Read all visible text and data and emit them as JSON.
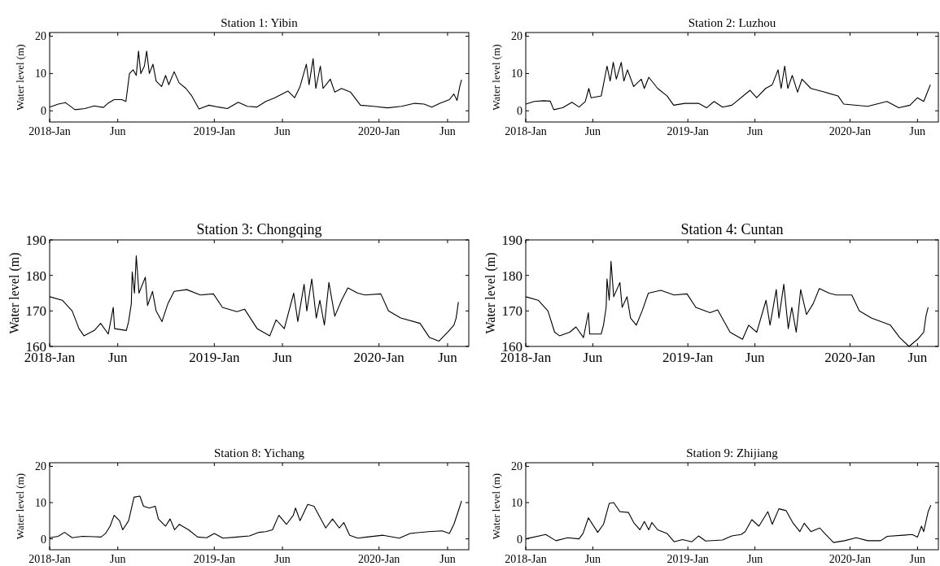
{
  "chart_data": [
    {
      "type": "line",
      "title": "Station 1: Yibin",
      "ylabel": "Water level (m)",
      "xlim": [
        "2018-01-01",
        "2020-07-18"
      ],
      "xticks": [
        {
          "value": "2018-01-01",
          "label": "2018-Jan"
        },
        {
          "value": "2018-06-01",
          "label": "Jun"
        },
        {
          "value": "2019-01-01",
          "label": "2019-Jan"
        },
        {
          "value": "2019-06-01",
          "label": "Jun"
        },
        {
          "value": "2020-01-01",
          "label": "2020-Jan"
        },
        {
          "value": "2020-06-01",
          "label": "Jun"
        }
      ],
      "ylim": [
        -3,
        21
      ],
      "yticks": [
        0,
        10,
        20
      ],
      "grid": false,
      "series": [
        {
          "color": "#000000",
          "x": [
            "2018-01-01",
            "2018-01-20",
            "2018-02-05",
            "2018-02-26",
            "2018-03-20",
            "2018-04-10",
            "2018-04-30",
            "2018-05-10",
            "2018-05-24",
            "2018-06-10",
            "2018-06-19",
            "2018-06-27",
            "2018-07-05",
            "2018-07-12",
            "2018-07-17",
            "2018-07-22",
            "2018-07-30",
            "2018-08-04",
            "2018-08-10",
            "2018-08-18",
            "2018-08-25",
            "2018-09-06",
            "2018-09-15",
            "2018-09-22",
            "2018-10-04",
            "2018-10-15",
            "2018-10-30",
            "2018-11-12",
            "2018-11-28",
            "2018-12-20",
            "2019-01-10",
            "2019-01-30",
            "2019-02-23",
            "2019-03-15",
            "2019-04-05",
            "2019-04-25",
            "2019-05-15",
            "2019-06-13",
            "2019-06-28",
            "2019-07-10",
            "2019-07-24",
            "2019-07-30",
            "2019-08-08",
            "2019-08-14",
            "2019-08-24",
            "2019-08-30",
            "2019-09-15",
            "2019-09-25",
            "2019-10-10",
            "2019-10-30",
            "2019-11-21",
            "2019-12-20",
            "2020-01-20",
            "2020-02-20",
            "2020-03-20",
            "2020-04-10",
            "2020-04-27",
            "2020-05-15",
            "2020-06-05",
            "2020-06-15",
            "2020-06-22",
            "2020-06-28",
            "2020-07-02"
          ],
          "values": [
            1.0,
            1.8,
            2.2,
            0.3,
            0.6,
            1.3,
            0.9,
            2.0,
            3.0,
            3.0,
            2.5,
            10,
            11,
            9.5,
            16,
            10,
            12,
            16,
            10,
            12.5,
            8,
            6.5,
            9.5,
            7,
            10.5,
            7.5,
            6,
            4,
            0.5,
            1.5,
            1.0,
            0.6,
            2.3,
            1.2,
            1.0,
            2.5,
            3.5,
            5.3,
            3.5,
            6.5,
            12.5,
            7,
            14,
            6,
            12,
            6,
            8.5,
            5,
            6,
            5,
            1.5,
            1.2,
            0.8,
            1.2,
            2.0,
            1.8,
            1.0,
            2.0,
            3.0,
            4.5,
            2.8,
            6.5,
            8.3
          ]
        }
      ]
    },
    {
      "type": "line",
      "title": "Station 2: Luzhou",
      "ylabel": "Water level (m)",
      "xlim": [
        "2018-01-01",
        "2020-07-18"
      ],
      "xticks": [
        {
          "value": "2018-01-01",
          "label": "2018-Jan"
        },
        {
          "value": "2018-06-01",
          "label": "Jun"
        },
        {
          "value": "2019-01-01",
          "label": "2019-Jan"
        },
        {
          "value": "2019-06-01",
          "label": "Jun"
        },
        {
          "value": "2020-01-01",
          "label": "2020-Jan"
        },
        {
          "value": "2020-06-01",
          "label": "Jun"
        }
      ],
      "ylim": [
        -3,
        21
      ],
      "yticks": [
        0,
        10,
        20
      ],
      "grid": false,
      "series": [
        {
          "color": "#000000",
          "x": [
            "2018-01-01",
            "2018-01-20",
            "2018-02-10",
            "2018-02-25",
            "2018-03-05",
            "2018-03-25",
            "2018-04-15",
            "2018-05-01",
            "2018-05-15",
            "2018-05-23",
            "2018-05-28",
            "2018-06-20",
            "2018-07-03",
            "2018-07-10",
            "2018-07-17",
            "2018-07-24",
            "2018-08-04",
            "2018-08-10",
            "2018-08-18",
            "2018-09-01",
            "2018-09-18",
            "2018-09-25",
            "2018-10-05",
            "2018-10-25",
            "2018-11-15",
            "2018-11-30",
            "2018-12-25",
            "2019-01-25",
            "2019-02-12",
            "2019-03-01",
            "2019-03-20",
            "2019-04-10",
            "2019-05-21",
            "2019-06-05",
            "2019-06-25",
            "2019-07-10",
            "2019-07-23",
            "2019-07-30",
            "2019-08-07",
            "2019-08-14",
            "2019-08-24",
            "2019-09-05",
            "2019-09-15",
            "2019-10-05",
            "2019-11-05",
            "2019-12-05",
            "2019-12-18",
            "2020-02-10",
            "2020-03-24",
            "2020-04-20",
            "2020-05-15",
            "2020-06-01",
            "2020-06-15",
            "2020-06-25",
            "2020-06-30"
          ],
          "values": [
            1.8,
            2.5,
            2.7,
            2.6,
            0.3,
            0.8,
            2.3,
            1.0,
            2.5,
            6,
            3.5,
            4,
            12,
            8,
            13,
            8.5,
            13,
            8,
            11,
            6.5,
            8.5,
            6,
            9,
            6,
            4,
            1.5,
            2,
            2,
            0.8,
            2.5,
            1.0,
            1.5,
            5.5,
            3.5,
            6,
            7,
            11,
            6,
            12,
            6,
            9.5,
            5,
            8.5,
            6,
            5,
            4,
            1.8,
            1.2,
            2.5,
            0.8,
            1.5,
            3.5,
            2.5,
            5.5,
            7
          ]
        }
      ]
    },
    {
      "type": "line",
      "title": "Station 3: Chongqing",
      "ylabel": "Water level (m)",
      "xlim": [
        "2018-01-01",
        "2020-07-18"
      ],
      "xticks": [
        {
          "value": "2018-01-01",
          "label": "2018-Jan"
        },
        {
          "value": "2018-06-01",
          "label": "Jun"
        },
        {
          "value": "2019-01-01",
          "label": "2019-Jan"
        },
        {
          "value": "2019-06-01",
          "label": "Jun"
        },
        {
          "value": "2020-01-01",
          "label": "2020-Jan"
        },
        {
          "value": "2020-06-01",
          "label": "Jun"
        }
      ],
      "ylim": [
        160,
        190
      ],
      "yticks": [
        160,
        170,
        180,
        190
      ],
      "grid": false,
      "series": [
        {
          "color": "#000000",
          "x": [
            "2018-01-01",
            "2018-01-29",
            "2018-02-20",
            "2018-03-07",
            "2018-03-18",
            "2018-04-10",
            "2018-04-24",
            "2018-05-11",
            "2018-05-22",
            "2018-05-25",
            "2018-06-20",
            "2018-06-25",
            "2018-07-01",
            "2018-07-03",
            "2018-07-08",
            "2018-07-12",
            "2018-07-18",
            "2018-08-01",
            "2018-08-06",
            "2018-08-17",
            "2018-08-25",
            "2018-09-07",
            "2018-09-20",
            "2018-10-04",
            "2018-11-01",
            "2018-12-01",
            "2018-12-30",
            "2019-01-19",
            "2019-02-20",
            "2019-03-09",
            "2019-04-06",
            "2019-05-04",
            "2019-05-18",
            "2019-06-05",
            "2019-06-26",
            "2019-07-05",
            "2019-07-19",
            "2019-07-25",
            "2019-08-05",
            "2019-08-15",
            "2019-08-23",
            "2019-09-02",
            "2019-09-12",
            "2019-09-25",
            "2019-10-10",
            "2019-10-24",
            "2019-11-15",
            "2019-12-01",
            "2020-01-05",
            "2020-01-22",
            "2020-02-18",
            "2020-04-01",
            "2020-04-22",
            "2020-05-13",
            "2020-06-01",
            "2020-06-15",
            "2020-06-20",
            "2020-06-25"
          ],
          "values": [
            174,
            173,
            170,
            165,
            163,
            164.5,
            166.5,
            163.5,
            171,
            165,
            164.5,
            167,
            172,
            181,
            175,
            185.5,
            175,
            179.5,
            171.5,
            175.5,
            170,
            167,
            172,
            175.5,
            176,
            174.5,
            174.8,
            171,
            169.8,
            170.5,
            165,
            163,
            167.5,
            165,
            175,
            167,
            177.5,
            170,
            179,
            168,
            173,
            166,
            178,
            168.5,
            173,
            176.5,
            175,
            174.5,
            174.8,
            170,
            168,
            166.5,
            162.5,
            161.5,
            164,
            166,
            168,
            172.5
          ]
        }
      ]
    },
    {
      "type": "line",
      "title": "Station 4: Cuntan",
      "ylabel": "Water level (m)",
      "xlim": [
        "2018-01-01",
        "2020-07-18"
      ],
      "xticks": [
        {
          "value": "2018-01-01",
          "label": "2018-Jan"
        },
        {
          "value": "2018-06-01",
          "label": "Jun"
        },
        {
          "value": "2019-01-01",
          "label": "2019-Jan"
        },
        {
          "value": "2019-06-01",
          "label": "Jun"
        },
        {
          "value": "2020-01-01",
          "label": "2020-Jan"
        },
        {
          "value": "2020-06-01",
          "label": "Jun"
        }
      ],
      "ylim": [
        160,
        190
      ],
      "yticks": [
        160,
        170,
        180,
        190
      ],
      "grid": false,
      "series": [
        {
          "color": "#000000",
          "x": [
            "2018-01-01",
            "2018-01-29",
            "2018-02-20",
            "2018-03-07",
            "2018-03-18",
            "2018-04-10",
            "2018-04-24",
            "2018-05-11",
            "2018-05-22",
            "2018-05-25",
            "2018-06-20",
            "2018-06-25",
            "2018-07-01",
            "2018-07-03",
            "2018-07-08",
            "2018-07-12",
            "2018-07-18",
            "2018-08-01",
            "2018-08-06",
            "2018-08-17",
            "2018-08-25",
            "2018-09-07",
            "2018-09-20",
            "2018-10-04",
            "2018-11-01",
            "2018-12-01",
            "2018-12-30",
            "2019-01-19",
            "2019-02-20",
            "2019-03-09",
            "2019-04-06",
            "2019-05-04",
            "2019-05-18",
            "2019-06-05",
            "2019-06-26",
            "2019-07-05",
            "2019-07-19",
            "2019-07-25",
            "2019-08-05",
            "2019-08-15",
            "2019-08-23",
            "2019-09-02",
            "2019-09-12",
            "2019-09-25",
            "2019-10-10",
            "2019-10-24",
            "2019-11-15",
            "2019-12-01",
            "2020-01-05",
            "2020-01-22",
            "2020-02-18",
            "2020-04-01",
            "2020-04-22",
            "2020-05-13",
            "2020-06-01",
            "2020-06-15",
            "2020-06-20",
            "2020-06-25"
          ],
          "values": [
            174,
            173,
            170,
            164,
            163,
            164,
            165.5,
            162.5,
            169.5,
            163.5,
            163.5,
            166,
            171,
            179,
            173,
            184,
            174,
            178,
            171,
            174,
            168,
            166,
            170,
            175,
            175.8,
            174.5,
            174.8,
            171,
            169.5,
            170.3,
            164,
            162,
            166,
            164,
            173,
            166,
            176,
            168,
            177.5,
            165,
            171,
            164,
            176,
            169,
            172,
            176.3,
            175,
            174.5,
            174.5,
            170,
            168,
            166,
            162.5,
            160,
            162,
            164,
            168.5,
            171
          ]
        }
      ]
    },
    {
      "type": "line",
      "title": "Station 8: Yichang",
      "ylabel": "Water level (m)",
      "xlim": [
        "2018-01-01",
        "2020-07-18"
      ],
      "xticks": [
        {
          "value": "2018-01-01",
          "label": "2018-Jan"
        },
        {
          "value": "2018-06-01",
          "label": "Jun"
        },
        {
          "value": "2019-01-01",
          "label": "2019-Jan"
        },
        {
          "value": "2019-06-01",
          "label": "Jun"
        },
        {
          "value": "2020-01-01",
          "label": "2020-Jan"
        },
        {
          "value": "2020-06-01",
          "label": "Jun"
        }
      ],
      "ylim": [
        -3,
        21
      ],
      "yticks": [
        0,
        10,
        20
      ],
      "grid": false,
      "series": [
        {
          "color": "#000000",
          "x": [
            "2018-01-01",
            "2018-01-20",
            "2018-02-03",
            "2018-02-20",
            "2018-03-15",
            "2018-04-10",
            "2018-04-25",
            "2018-05-05",
            "2018-05-15",
            "2018-05-24",
            "2018-06-05",
            "2018-06-12",
            "2018-06-25",
            "2018-07-07",
            "2018-07-20",
            "2018-07-28",
            "2018-08-10",
            "2018-08-23",
            "2018-08-30",
            "2018-09-15",
            "2018-09-25",
            "2018-10-05",
            "2018-10-15",
            "2018-11-05",
            "2018-11-25",
            "2018-12-15",
            "2019-01-01",
            "2019-01-20",
            "2019-02-20",
            "2019-03-20",
            "2019-04-10",
            "2019-04-25",
            "2019-05-10",
            "2019-05-24",
            "2019-06-10",
            "2019-06-25",
            "2019-06-30",
            "2019-07-10",
            "2019-07-27",
            "2019-08-10",
            "2019-08-25",
            "2019-09-05",
            "2019-09-20",
            "2019-10-05",
            "2019-10-15",
            "2019-10-28",
            "2019-11-15",
            "2019-12-05",
            "2020-01-10",
            "2020-02-15",
            "2020-03-10",
            "2020-04-20",
            "2020-05-20",
            "2020-06-05",
            "2020-06-15",
            "2020-06-27",
            "2020-07-02"
          ],
          "values": [
            0.3,
            0.7,
            1.8,
            0.3,
            0.7,
            0.6,
            0.5,
            1.5,
            3.5,
            6.5,
            5,
            2.5,
            5,
            11.5,
            11.8,
            9,
            8.5,
            9,
            5.5,
            3.5,
            5.5,
            2.5,
            4,
            2.5,
            0.5,
            0.3,
            1.5,
            0.2,
            0.5,
            0.8,
            1.8,
            2.0,
            2.5,
            6.5,
            4,
            6.5,
            8.5,
            5,
            9.5,
            9,
            5.5,
            3,
            5.5,
            3,
            4.5,
            1,
            0.2,
            0.5,
            1.0,
            0.2,
            1.5,
            2.0,
            2.2,
            1.5,
            4,
            8.5,
            10.5
          ]
        }
      ]
    },
    {
      "type": "line",
      "title": "Station 9: Zhijiang",
      "ylabel": "Water level (m)",
      "xlim": [
        "2018-01-01",
        "2020-07-18"
      ],
      "xticks": [
        {
          "value": "2018-01-01",
          "label": "2018-Jan"
        },
        {
          "value": "2018-06-01",
          "label": "Jun"
        },
        {
          "value": "2019-01-01",
          "label": "2019-Jan"
        },
        {
          "value": "2019-06-01",
          "label": "Jun"
        },
        {
          "value": "2020-01-01",
          "label": "2020-Jan"
        },
        {
          "value": "2020-06-01",
          "label": "Jun"
        }
      ],
      "ylim": [
        -3,
        21
      ],
      "yticks": [
        0,
        10,
        20
      ],
      "grid": false,
      "series": [
        {
          "color": "#000000",
          "x": [
            "2018-01-01",
            "2018-02-15",
            "2018-03-10",
            "2018-04-05",
            "2018-05-01",
            "2018-05-10",
            "2018-05-22",
            "2018-06-12",
            "2018-06-25",
            "2018-07-08",
            "2018-07-18",
            "2018-08-01",
            "2018-08-20",
            "2018-09-01",
            "2018-09-15",
            "2018-09-25",
            "2018-10-05",
            "2018-10-12",
            "2018-10-25",
            "2018-11-15",
            "2018-12-01",
            "2018-12-20",
            "2019-01-10",
            "2019-01-25",
            "2019-02-10",
            "2019-03-20",
            "2019-04-10",
            "2019-05-01",
            "2019-05-10",
            "2019-05-25",
            "2019-06-10",
            "2019-06-30",
            "2019-07-10",
            "2019-07-25",
            "2019-08-10",
            "2019-08-25",
            "2019-09-10",
            "2019-09-20",
            "2019-10-05",
            "2019-10-25",
            "2019-11-05",
            "2019-11-25",
            "2019-12-20",
            "2020-01-15",
            "2020-02-10",
            "2020-03-10",
            "2020-03-25",
            "2020-04-30",
            "2020-05-20",
            "2020-06-01",
            "2020-06-10",
            "2020-06-15",
            "2020-06-25",
            "2020-07-01"
          ],
          "values": [
            0,
            1.2,
            -0.5,
            0.3,
            0,
            1.5,
            5.8,
            1.8,
            4,
            9.8,
            10,
            7.5,
            7.3,
            4.5,
            2.5,
            4.8,
            2.5,
            4.5,
            2.5,
            1.5,
            -0.8,
            -0.2,
            -0.8,
            0.8,
            -0.6,
            -0.3,
            0.8,
            1.2,
            2,
            5.3,
            3.5,
            7.5,
            4,
            8.3,
            7.8,
            4.5,
            2,
            4.3,
            2,
            3,
            1.5,
            -1,
            -0.5,
            0.3,
            -0.5,
            -0.5,
            0.7,
            1,
            1.2,
            0.5,
            3.5,
            2,
            7.5,
            9.3
          ]
        }
      ]
    }
  ]
}
